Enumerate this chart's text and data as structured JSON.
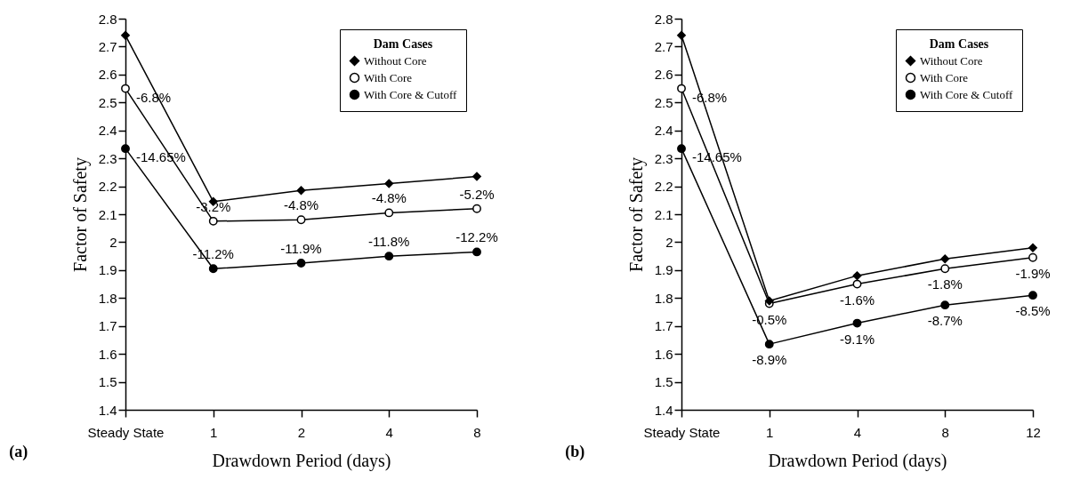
{
  "chart_data": [
    {
      "type": "line",
      "xlabel": "Drawdown Period (days)",
      "ylabel": "Factor of Safety",
      "legend_title": "Dam Cases",
      "legend": "top right",
      "grid": false,
      "categories": [
        "Steady State",
        "1",
        "2",
        "4",
        "8"
      ],
      "ylim": [
        1.4,
        2.8
      ],
      "yticks": [
        1.4,
        1.5,
        1.6,
        1.7,
        1.8,
        1.9,
        {
          "value": 2,
          "label": "2"
        },
        2.1,
        2.2,
        2.3,
        2.4,
        2.5,
        2.6,
        2.7,
        2.8
      ],
      "series": [
        {
          "name": "Without Core",
          "color": "#000000",
          "marker": "diamond",
          "values": [
            2.74,
            2.145,
            2.185,
            2.21,
            2.235
          ]
        },
        {
          "name": "With Core",
          "color": "#000000",
          "marker": "circle-open",
          "values": [
            2.55,
            2.075,
            2.08,
            2.105,
            2.12
          ]
        },
        {
          "name": "With Core & Cutoff",
          "color": "#000000",
          "marker": "circle",
          "values": [
            2.335,
            1.905,
            1.925,
            1.95,
            1.965
          ]
        }
      ],
      "annotations": [
        {
          "text": "-6.8%",
          "x": "Steady State",
          "y": 2.55
        },
        {
          "text": "-14.65%",
          "x": "Steady State",
          "y": 2.335
        },
        {
          "text": "-3.2%",
          "x": "1",
          "y": 2.075
        },
        {
          "text": "-4.8%",
          "x": "2",
          "y": 2.08
        },
        {
          "text": "-4.8%",
          "x": "4",
          "y": 2.105
        },
        {
          "text": "-5.2%",
          "x": "8",
          "y": 2.12
        },
        {
          "text": "-11.2%",
          "x": "1",
          "y": 1.905
        },
        {
          "text": "-11.9%",
          "x": "2",
          "y": 1.925
        },
        {
          "text": "-11.8%",
          "x": "4",
          "y": 1.95
        },
        {
          "text": "-12.2%",
          "x": "8",
          "y": 1.965
        },
        "(a)"
      ]
    },
    {
      "type": "line",
      "xlabel": "Drawdown Period (days)",
      "ylabel": "Factor of Safety",
      "legend_title": "Dam Cases",
      "legend": "top right",
      "grid": false,
      "categories": [
        "Steady State",
        "1",
        "4",
        "8",
        "12"
      ],
      "ylim": [
        1.4,
        2.8
      ],
      "yticks": [
        1.4,
        1.5,
        1.6,
        1.7,
        1.8,
        1.9,
        {
          "value": 2,
          "label": "2"
        },
        2.1,
        2.2,
        2.3,
        2.4,
        2.5,
        2.6,
        2.7,
        2.8
      ],
      "series": [
        {
          "name": "Without Core",
          "color": "#000000",
          "marker": "diamond",
          "values": [
            2.74,
            1.79,
            1.88,
            1.94,
            1.98
          ]
        },
        {
          "name": "With Core",
          "color": "#000000",
          "marker": "circle-open",
          "values": [
            2.55,
            1.78,
            1.85,
            1.905,
            1.945
          ]
        },
        {
          "name": "With Core & Cutoff",
          "color": "#000000",
          "marker": "circle",
          "values": [
            2.335,
            1.635,
            1.71,
            1.775,
            1.81
          ]
        }
      ],
      "annotations": [
        {
          "text": "-6.8%",
          "x": "Steady State",
          "y": 2.55
        },
        {
          "text": "-14.65%",
          "x": "Steady State",
          "y": 2.335
        },
        {
          "text": "-0.5%",
          "x": "1",
          "y": 1.78
        },
        {
          "text": "-1.6%",
          "x": "4",
          "y": 1.85
        },
        {
          "text": "-1.8%",
          "x": "8",
          "y": 1.905
        },
        {
          "text": "-1.9%",
          "x": "12",
          "y": 1.945
        },
        {
          "text": "-8.9%",
          "x": "1",
          "y": 1.635
        },
        {
          "text": "-9.1%",
          "x": "4",
          "y": 1.71
        },
        {
          "text": "-8.7%",
          "x": "8",
          "y": 1.775
        },
        {
          "text": "-8.5%",
          "x": "12",
          "y": 1.81
        },
        "(b)"
      ]
    }
  ]
}
